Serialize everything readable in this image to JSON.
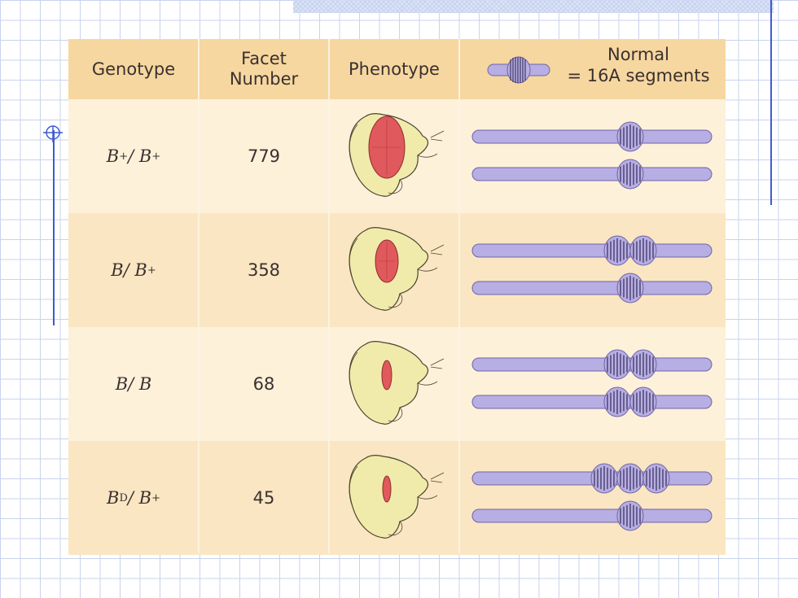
{
  "header": {
    "col_genotype": "Genotype",
    "col_facet_line1": "Facet",
    "col_facet_line2": "Number",
    "col_phenotype": "Phenotype",
    "legend_line1": "Normal",
    "legend_line2": "= 16A segments"
  },
  "rows": [
    {
      "genotype_base": "B",
      "genotype_sup1": "+",
      "genotype_sep": " / B",
      "genotype_sup2": "+",
      "facet": "779",
      "eye_size": "large",
      "top_segments": 1,
      "bottom_segments": 1
    },
    {
      "genotype_base": "B",
      "genotype_sup1": "",
      "genotype_sep": " / B",
      "genotype_sup2": "+",
      "facet": "358",
      "eye_size": "medium",
      "top_segments": 2,
      "bottom_segments": 1
    },
    {
      "genotype_base": "B",
      "genotype_sup1": "",
      "genotype_sep": " / B",
      "genotype_sup2": "",
      "facet": "68",
      "eye_size": "small",
      "top_segments": 2,
      "bottom_segments": 2
    },
    {
      "genotype_base": "B",
      "genotype_sup1": "D",
      "genotype_sep": " / B",
      "genotype_sup2": "+",
      "facet": "45",
      "eye_size": "smallest",
      "top_segments": 3,
      "bottom_segments": 1
    }
  ],
  "colors": {
    "header_bg": "#f6d7a0",
    "chromosome": "#b7aee3",
    "chromosome_outline": "#6e64a8",
    "band_stripe": "#3e3560",
    "eye": "#e0595c",
    "fly_head": "#f1ebab"
  }
}
